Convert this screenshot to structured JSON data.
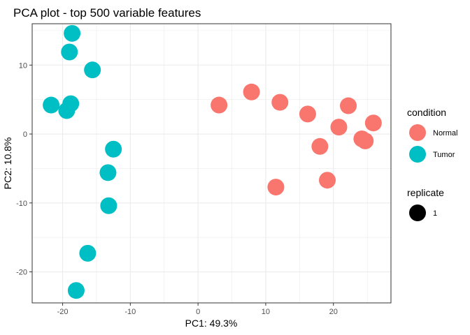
{
  "chart_data": {
    "type": "scatter",
    "title": "PCA plot - top 500 variable features",
    "xlabel": "PC1: 49.3%",
    "ylabel": "PC2: 10.8%",
    "xlim": [
      -24.5,
      28.5
    ],
    "ylim": [
      -24.5,
      16
    ],
    "xticks": [
      -20,
      -10,
      0,
      10,
      20
    ],
    "xtick_labels": [
      "-20",
      "-10",
      "0",
      "10",
      "20"
    ],
    "yticks": [
      -20,
      -10,
      0,
      10
    ],
    "ytick_labels": [
      "-20",
      "-10",
      "0",
      "10"
    ],
    "grid": true,
    "legend_position": "right",
    "legends": [
      {
        "title": "condition",
        "entries": [
          {
            "label": "Normal",
            "color": "#F8766D"
          },
          {
            "label": "Tumor",
            "color": "#00BFC4"
          }
        ]
      },
      {
        "title": "replicate",
        "entries": [
          {
            "label": "1",
            "color": "#000000"
          }
        ]
      }
    ],
    "series": [
      {
        "name": "Normal",
        "color": "#F8766D",
        "points": [
          {
            "x": 3.1,
            "y": 4.2
          },
          {
            "x": 7.9,
            "y": 6.1
          },
          {
            "x": 12.1,
            "y": 4.6
          },
          {
            "x": 16.2,
            "y": 2.9
          },
          {
            "x": 22.2,
            "y": 4.1
          },
          {
            "x": 20.8,
            "y": 1.0
          },
          {
            "x": 25.9,
            "y": 1.6
          },
          {
            "x": 24.2,
            "y": -0.7
          },
          {
            "x": 24.7,
            "y": -1.0
          },
          {
            "x": 18.0,
            "y": -1.8
          },
          {
            "x": 11.5,
            "y": -7.7
          },
          {
            "x": 19.1,
            "y": -6.7
          }
        ]
      },
      {
        "name": "Tumor",
        "color": "#00BFC4",
        "points": [
          {
            "x": -18.6,
            "y": 14.6
          },
          {
            "x": -19.0,
            "y": 11.9
          },
          {
            "x": -15.6,
            "y": 9.3
          },
          {
            "x": -21.7,
            "y": 4.2
          },
          {
            "x": -18.8,
            "y": 4.4
          },
          {
            "x": -19.4,
            "y": 3.4
          },
          {
            "x": -12.5,
            "y": -2.2
          },
          {
            "x": -13.3,
            "y": -5.6
          },
          {
            "x": -13.2,
            "y": -10.4
          },
          {
            "x": -16.3,
            "y": -17.3
          },
          {
            "x": -18.0,
            "y": -22.7
          }
        ]
      }
    ]
  }
}
